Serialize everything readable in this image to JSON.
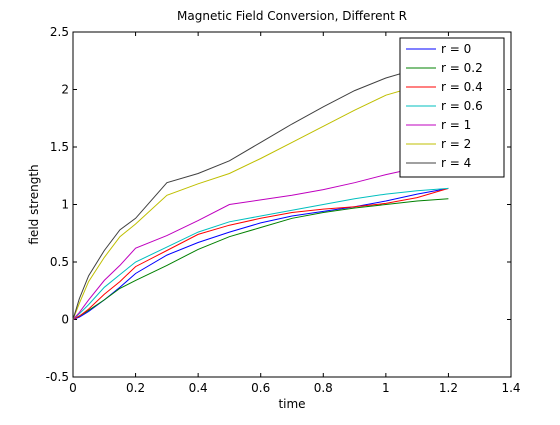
{
  "chart_data": {
    "type": "line",
    "title": "Magnetic Field Conversion, Different R",
    "xlabel": "time",
    "ylabel": "field strength",
    "xlim": [
      0,
      1.4
    ],
    "ylim": [
      -0.5,
      2.5
    ],
    "xticks": [
      "0",
      "0.2",
      "0.4",
      "0.6",
      "0.8",
      "1",
      "1.2",
      "1.4"
    ],
    "xtick_values": [
      0,
      0.2,
      0.4,
      0.6,
      0.8,
      1.0,
      1.2,
      1.4
    ],
    "yticks": [
      "-0.5",
      "0",
      "0.5",
      "1",
      "1.5",
      "2",
      "2.5"
    ],
    "ytick_values": [
      -0.5,
      0,
      0.5,
      1.0,
      1.5,
      2.0,
      2.5
    ],
    "grid": false,
    "legend_position": "top-right",
    "series": [
      {
        "name": "r = 0",
        "color": "#0000ff",
        "x": [
          0,
          0.02,
          0.05,
          0.1,
          0.15,
          0.2,
          0.3,
          0.4,
          0.5,
          0.6,
          0.7,
          0.8,
          0.9,
          1.0,
          1.1,
          1.2
        ],
        "y": [
          0,
          0.02,
          0.07,
          0.17,
          0.28,
          0.4,
          0.56,
          0.67,
          0.76,
          0.84,
          0.9,
          0.94,
          0.98,
          1.03,
          1.09,
          1.14
        ]
      },
      {
        "name": "r = 0.2",
        "color": "#008000",
        "x": [
          0,
          0.02,
          0.05,
          0.1,
          0.15,
          0.2,
          0.3,
          0.4,
          0.5,
          0.6,
          0.7,
          0.8,
          0.9,
          1.0,
          1.1,
          1.2
        ],
        "y": [
          0,
          0.03,
          0.08,
          0.17,
          0.27,
          0.34,
          0.47,
          0.61,
          0.72,
          0.8,
          0.88,
          0.93,
          0.97,
          1.0,
          1.03,
          1.05
        ]
      },
      {
        "name": "r = 0.4",
        "color": "#ff0000",
        "x": [
          0,
          0.02,
          0.05,
          0.1,
          0.15,
          0.2,
          0.3,
          0.4,
          0.5,
          0.6,
          0.7,
          0.8,
          0.9,
          1.0,
          1.1,
          1.2
        ],
        "y": [
          0,
          0.03,
          0.09,
          0.22,
          0.33,
          0.46,
          0.6,
          0.74,
          0.82,
          0.88,
          0.93,
          0.96,
          0.98,
          1.01,
          1.06,
          1.14
        ]
      },
      {
        "name": "r = 0.6",
        "color": "#00bfbf",
        "x": [
          0,
          0.02,
          0.05,
          0.1,
          0.15,
          0.2,
          0.3,
          0.4,
          0.5,
          0.6,
          0.7,
          0.8,
          0.9,
          1.0,
          1.1,
          1.2
        ],
        "y": [
          0,
          0.05,
          0.13,
          0.28,
          0.39,
          0.5,
          0.63,
          0.76,
          0.85,
          0.9,
          0.95,
          1.0,
          1.05,
          1.09,
          1.12,
          1.14
        ]
      },
      {
        "name": "r = 1",
        "color": "#bf00bf",
        "x": [
          0,
          0.02,
          0.05,
          0.1,
          0.15,
          0.2,
          0.3,
          0.4,
          0.5,
          0.6,
          0.7,
          0.8,
          0.9,
          1.0,
          1.1,
          1.2
        ],
        "y": [
          0,
          0.06,
          0.17,
          0.34,
          0.47,
          0.62,
          0.73,
          0.86,
          1.0,
          1.04,
          1.08,
          1.13,
          1.19,
          1.26,
          1.32,
          1.36
        ]
      },
      {
        "name": "r = 2",
        "color": "#bfbf00",
        "x": [
          0,
          0.02,
          0.05,
          0.1,
          0.15,
          0.2,
          0.3,
          0.4,
          0.5,
          0.6,
          0.7,
          0.8,
          0.9,
          1.0,
          1.1,
          1.2
        ],
        "y": [
          0,
          0.14,
          0.33,
          0.54,
          0.72,
          0.83,
          1.08,
          1.18,
          1.27,
          1.4,
          1.54,
          1.68,
          1.82,
          1.95,
          2.03,
          2.08
        ]
      },
      {
        "name": "r = 4",
        "color": "#404040",
        "x": [
          0,
          0.02,
          0.05,
          0.1,
          0.15,
          0.2,
          0.3,
          0.4,
          0.5,
          0.6,
          0.7,
          0.8,
          0.9,
          1.0,
          1.1,
          1.2
        ],
        "y": [
          0,
          0.18,
          0.38,
          0.6,
          0.78,
          0.88,
          1.19,
          1.27,
          1.38,
          1.54,
          1.7,
          1.85,
          1.99,
          2.1,
          2.18,
          2.26
        ]
      }
    ]
  }
}
